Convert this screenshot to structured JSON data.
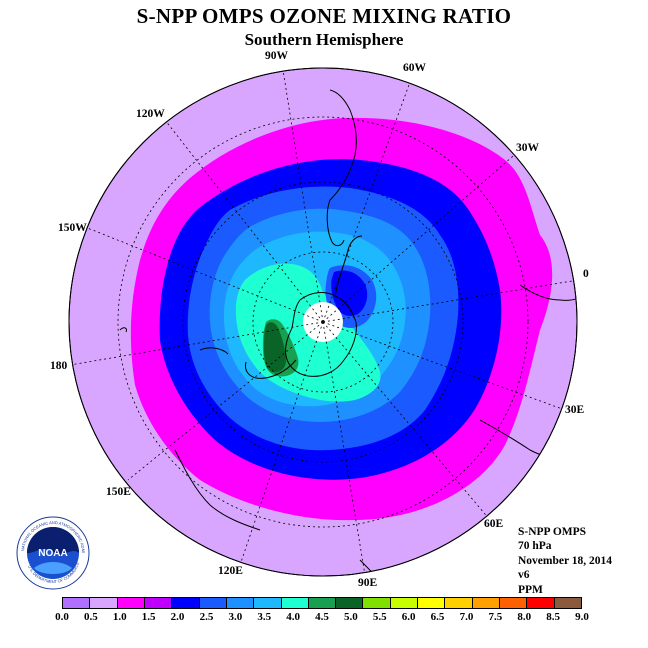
{
  "header": {
    "title": "S-NPP OMPS OZONE MIXING RATIO",
    "subtitle": "Southern Hemisphere"
  },
  "map": {
    "projection": "south-polar-stereographic",
    "longitude_labels": [
      "90W",
      "60W",
      "30W",
      "0",
      "30E",
      "60E",
      "90E",
      "120E",
      "150E",
      "180",
      "150W",
      "120W"
    ],
    "contour_fill_colors": [
      "#d9a6ff",
      "#ff00ff",
      "#0000ff",
      "#1a5aff",
      "#1e90ff",
      "#1eb8ff",
      "#1effd2",
      "#18a050",
      "#0a6428"
    ]
  },
  "info": {
    "instrument": "S-NPP OMPS",
    "level": "70 hPa",
    "date": "November 18, 2014",
    "version": "v6",
    "units": "PPM"
  },
  "colorbar": {
    "colors": [
      "#b070ff",
      "#d9a6ff",
      "#ff00ff",
      "#c000ff",
      "#0000ff",
      "#1a5aff",
      "#1e90ff",
      "#1eb8ff",
      "#1effd2",
      "#18a050",
      "#0a6428",
      "#80e000",
      "#c8ff00",
      "#ffff00",
      "#ffd000",
      "#ffa000",
      "#ff6000",
      "#ff0000",
      "#8b5a3c"
    ],
    "tick_labels": [
      "0.0",
      "0.5",
      "1.0",
      "1.5",
      "2.0",
      "2.5",
      "3.0",
      "3.5",
      "4.0",
      "4.5",
      "5.0",
      "5.5",
      "6.0",
      "6.5",
      "7.0",
      "7.5",
      "8.0",
      "8.5",
      "9.0"
    ]
  },
  "logo": {
    "text": "NOAA",
    "ring_text_top": "NATIONAL OCEANIC AND ATMOSPHERIC ADMINISTRATION",
    "ring_text_bottom": "U.S. DEPARTMENT OF COMMERCE"
  }
}
